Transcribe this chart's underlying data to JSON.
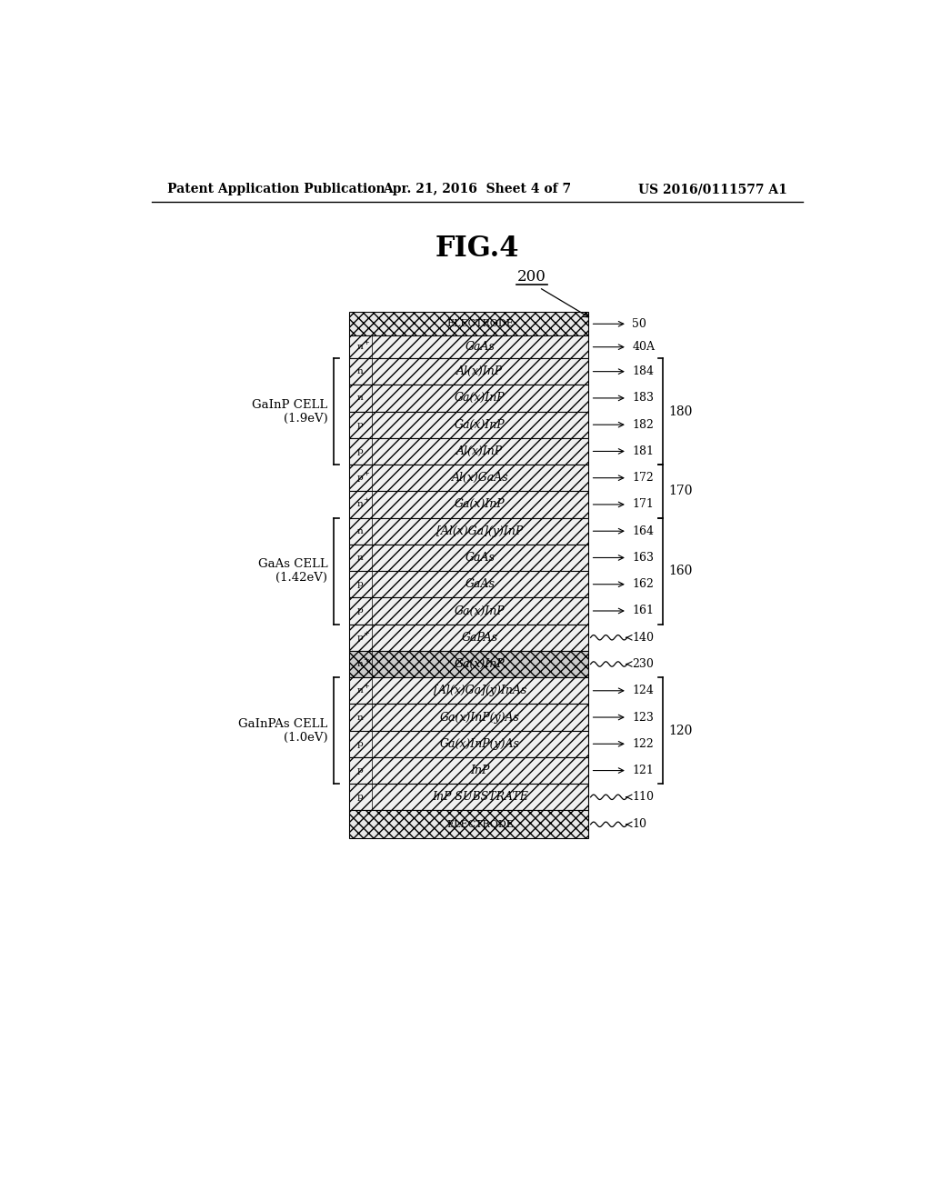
{
  "title": "FIG.4",
  "header_left": "Patent Application Publication",
  "header_center": "Apr. 21, 2016  Sheet 4 of 7",
  "header_right": "US 2016/0111577 A1",
  "bg_color": "#ffffff",
  "layers": [
    {
      "label": "ELECTRODE",
      "doping": "",
      "ref": "50",
      "hatch": "xxx",
      "group": "top_electrode",
      "thick": 0.7,
      "squiggly": false
    },
    {
      "label": "GaAs",
      "doping": "n+",
      "ref": "40A",
      "hatch": "///",
      "group": "cap",
      "thick": 0.6,
      "squiggly": false
    },
    {
      "label": "Al(x)InP",
      "doping": "n",
      "ref": "184",
      "hatch": "///",
      "group": "gainp",
      "thick": 0.6,
      "squiggly": false
    },
    {
      "label": "Ga(x)InP",
      "doping": "n",
      "ref": "183",
      "hatch": "///",
      "group": "gainp",
      "thick": 0.6,
      "squiggly": false
    },
    {
      "label": "Ga(x)InP",
      "doping": "p",
      "ref": "182",
      "hatch": "///",
      "group": "gainp",
      "thick": 0.6,
      "squiggly": false
    },
    {
      "label": "Al(x)InP",
      "doping": "p",
      "ref": "181",
      "hatch": "///",
      "group": "gainp",
      "thick": 0.6,
      "squiggly": false
    },
    {
      "label": "Al(x)GaAs",
      "doping": "p+",
      "ref": "172",
      "hatch": "///",
      "group": "tunnel170",
      "thick": 0.6,
      "squiggly": false
    },
    {
      "label": "Ga(x)InP",
      "doping": "n+",
      "ref": "171",
      "hatch": "///",
      "group": "tunnel170",
      "thick": 0.6,
      "squiggly": false
    },
    {
      "label": "[Al(x)Ga](y)InP",
      "doping": "n",
      "ref": "164",
      "hatch": "///",
      "group": "gaas",
      "thick": 0.6,
      "squiggly": false
    },
    {
      "label": "GaAs",
      "doping": "n",
      "ref": "163",
      "hatch": "///",
      "group": "gaas",
      "thick": 0.6,
      "squiggly": false
    },
    {
      "label": "GaAs",
      "doping": "p",
      "ref": "162",
      "hatch": "///",
      "group": "gaas",
      "thick": 0.6,
      "squiggly": false
    },
    {
      "label": "Ga(x)InP",
      "doping": "p",
      "ref": "161",
      "hatch": "///",
      "group": "gaas",
      "thick": 0.6,
      "squiggly": false
    },
    {
      "label": "GaPAs",
      "doping": "p+",
      "ref": "140",
      "hatch": "///",
      "group": "tunnel140",
      "thick": 0.6,
      "squiggly": true
    },
    {
      "label": "Ga(x)InP",
      "doping": "n+",
      "ref": "230",
      "hatch": "xxx",
      "group": "buffer230",
      "thick": 0.6,
      "squiggly": true
    },
    {
      "label": "[Al(x)Ga](y)InAs",
      "doping": "n+",
      "ref": "124",
      "hatch": "///",
      "group": "gainpas",
      "thick": 0.6,
      "squiggly": false
    },
    {
      "label": "Ga(x)InP(y)As",
      "doping": "n",
      "ref": "123",
      "hatch": "///",
      "group": "gainpas",
      "thick": 0.6,
      "squiggly": false
    },
    {
      "label": "Ga(x)InP(y)As",
      "doping": "p",
      "ref": "122",
      "hatch": "///",
      "group": "gainpas",
      "thick": 0.6,
      "squiggly": false
    },
    {
      "label": "InP",
      "doping": "p",
      "ref": "121",
      "hatch": "///",
      "group": "gainpas",
      "thick": 0.6,
      "squiggly": false
    },
    {
      "label": "InP SUBSTRATE",
      "doping": "p",
      "ref": "110",
      "hatch": "///",
      "group": "substrate",
      "thick": 0.7,
      "squiggly": true
    },
    {
      "label": "ELECTRODE",
      "doping": "",
      "ref": "10",
      "hatch": "xxx",
      "group": "bot_electrode",
      "thick": 0.75,
      "squiggly": true
    }
  ],
  "right_brackets": [
    {
      "start": 2,
      "end": 5,
      "label": "180"
    },
    {
      "start": 6,
      "end": 7,
      "label": "170"
    },
    {
      "start": 8,
      "end": 11,
      "label": "160"
    },
    {
      "start": 14,
      "end": 17,
      "label": "120"
    }
  ],
  "left_brackets": [
    {
      "start": 2,
      "end": 5,
      "label": "GaInP CELL\n(1.9eV)"
    },
    {
      "start": 8,
      "end": 11,
      "label": "GaAs CELL\n(1.42eV)"
    },
    {
      "start": 14,
      "end": 17,
      "label": "GaInPAs CELL\n(1.0eV)"
    }
  ]
}
